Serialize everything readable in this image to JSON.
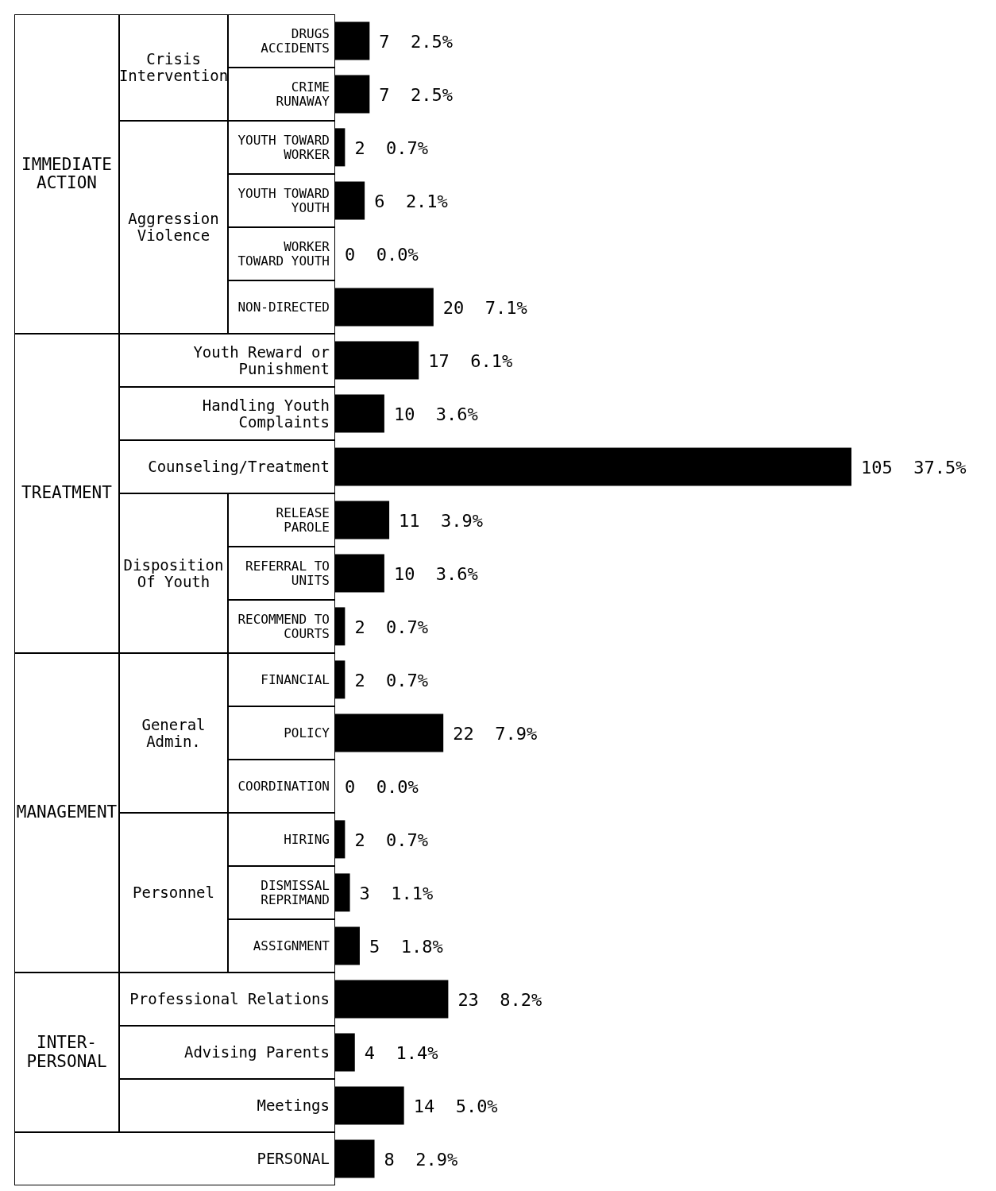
{
  "chart_data": {
    "type": "bar",
    "orientation": "horizontal",
    "color": "#000000",
    "categories": [
      "DRUGS ACCIDENTS",
      "CRIME RUNAWAY",
      "YOUTH TOWARD WORKER",
      "YOUTH TOWARD YOUTH",
      "WORKER TOWARD YOUTH",
      "NON-DIRECTED",
      "Youth Reward or Punishment",
      "Handling Youth Complaints",
      "Counseling/Treatment",
      "RELEASE PAROLE",
      "REFERRAL TO UNITS",
      "RECOMMEND TO COURTS",
      "FINANCIAL",
      "POLICY",
      "COORDINATION",
      "HIRING",
      "DISMISSAL REPRIMAND",
      "ASSIGNMENT",
      "Professional Relations",
      "Advising Parents",
      "Meetings",
      "PERSONAL"
    ],
    "values": [
      7,
      7,
      2,
      6,
      0,
      20,
      17,
      10,
      105,
      11,
      10,
      2,
      2,
      22,
      0,
      2,
      3,
      5,
      23,
      4,
      14,
      8
    ],
    "value_labels": [
      "7  2.5%",
      "7  2.5%",
      "2  0.7%",
      "6  2.1%",
      "0  0.0%",
      "20  7.1%",
      "17  6.1%",
      "10  3.6%",
      "105  37.5%",
      "11  3.9%",
      "10  3.6%",
      "2  0.7%",
      "2  0.7%",
      "22  7.9%",
      "0  0.0%",
      "2  0.7%",
      "3  1.1%",
      "5  1.8%",
      "23  8.2%",
      "4  1.4%",
      "14  5.0%",
      "8  2.9%"
    ],
    "annotations": [
      "IMMEDIATE ACTION",
      "Crisis Intervention",
      "Aggression Violence",
      "TREATMENT",
      "Disposition Of Youth",
      "MANAGEMENT",
      "General Admin.",
      "Personnel",
      "INTER-PERSONAL"
    ]
  }
}
